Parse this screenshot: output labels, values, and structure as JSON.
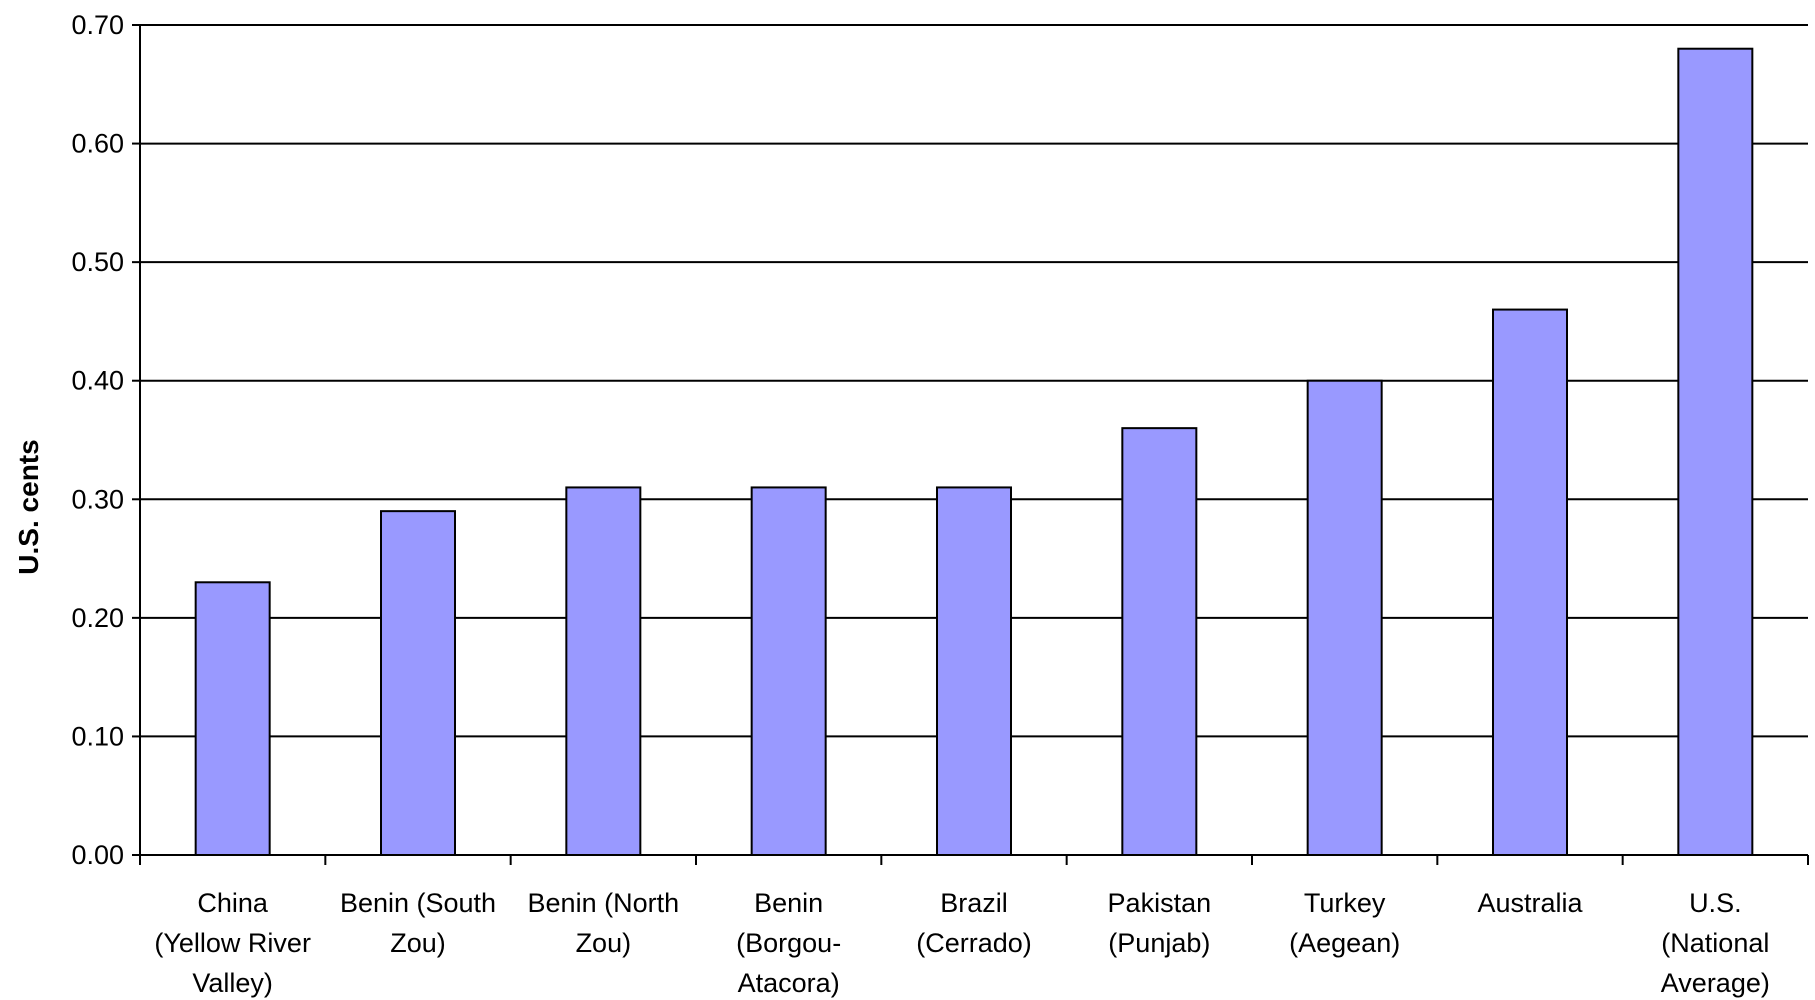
{
  "chart_data": {
    "type": "bar",
    "title": "",
    "xlabel": "",
    "ylabel": "U.S. cents",
    "ylim": [
      0,
      0.7
    ],
    "yticks": [
      "0.00",
      "0.10",
      "0.20",
      "0.30",
      "0.40",
      "0.50",
      "0.60",
      "0.70"
    ],
    "grid": true,
    "categories": [
      [
        "China",
        "(Yellow River",
        "Valley)"
      ],
      [
        "Benin (South",
        "Zou)"
      ],
      [
        "Benin (North",
        "Zou)"
      ],
      [
        "Benin",
        "(Borgou-",
        "Atacora)"
      ],
      [
        "Brazil",
        "(Cerrado)"
      ],
      [
        "Pakistan",
        "(Punjab)"
      ],
      [
        "Turkey",
        "(Aegean)"
      ],
      [
        "Australia"
      ],
      [
        "U.S.",
        "(National",
        "Average)"
      ]
    ],
    "values": [
      0.23,
      0.29,
      0.31,
      0.31,
      0.31,
      0.36,
      0.4,
      0.46,
      0.68
    ],
    "colors": {
      "bar_fill": "#9999ff",
      "bar_stroke": "#000000",
      "grid": "#000000"
    }
  }
}
